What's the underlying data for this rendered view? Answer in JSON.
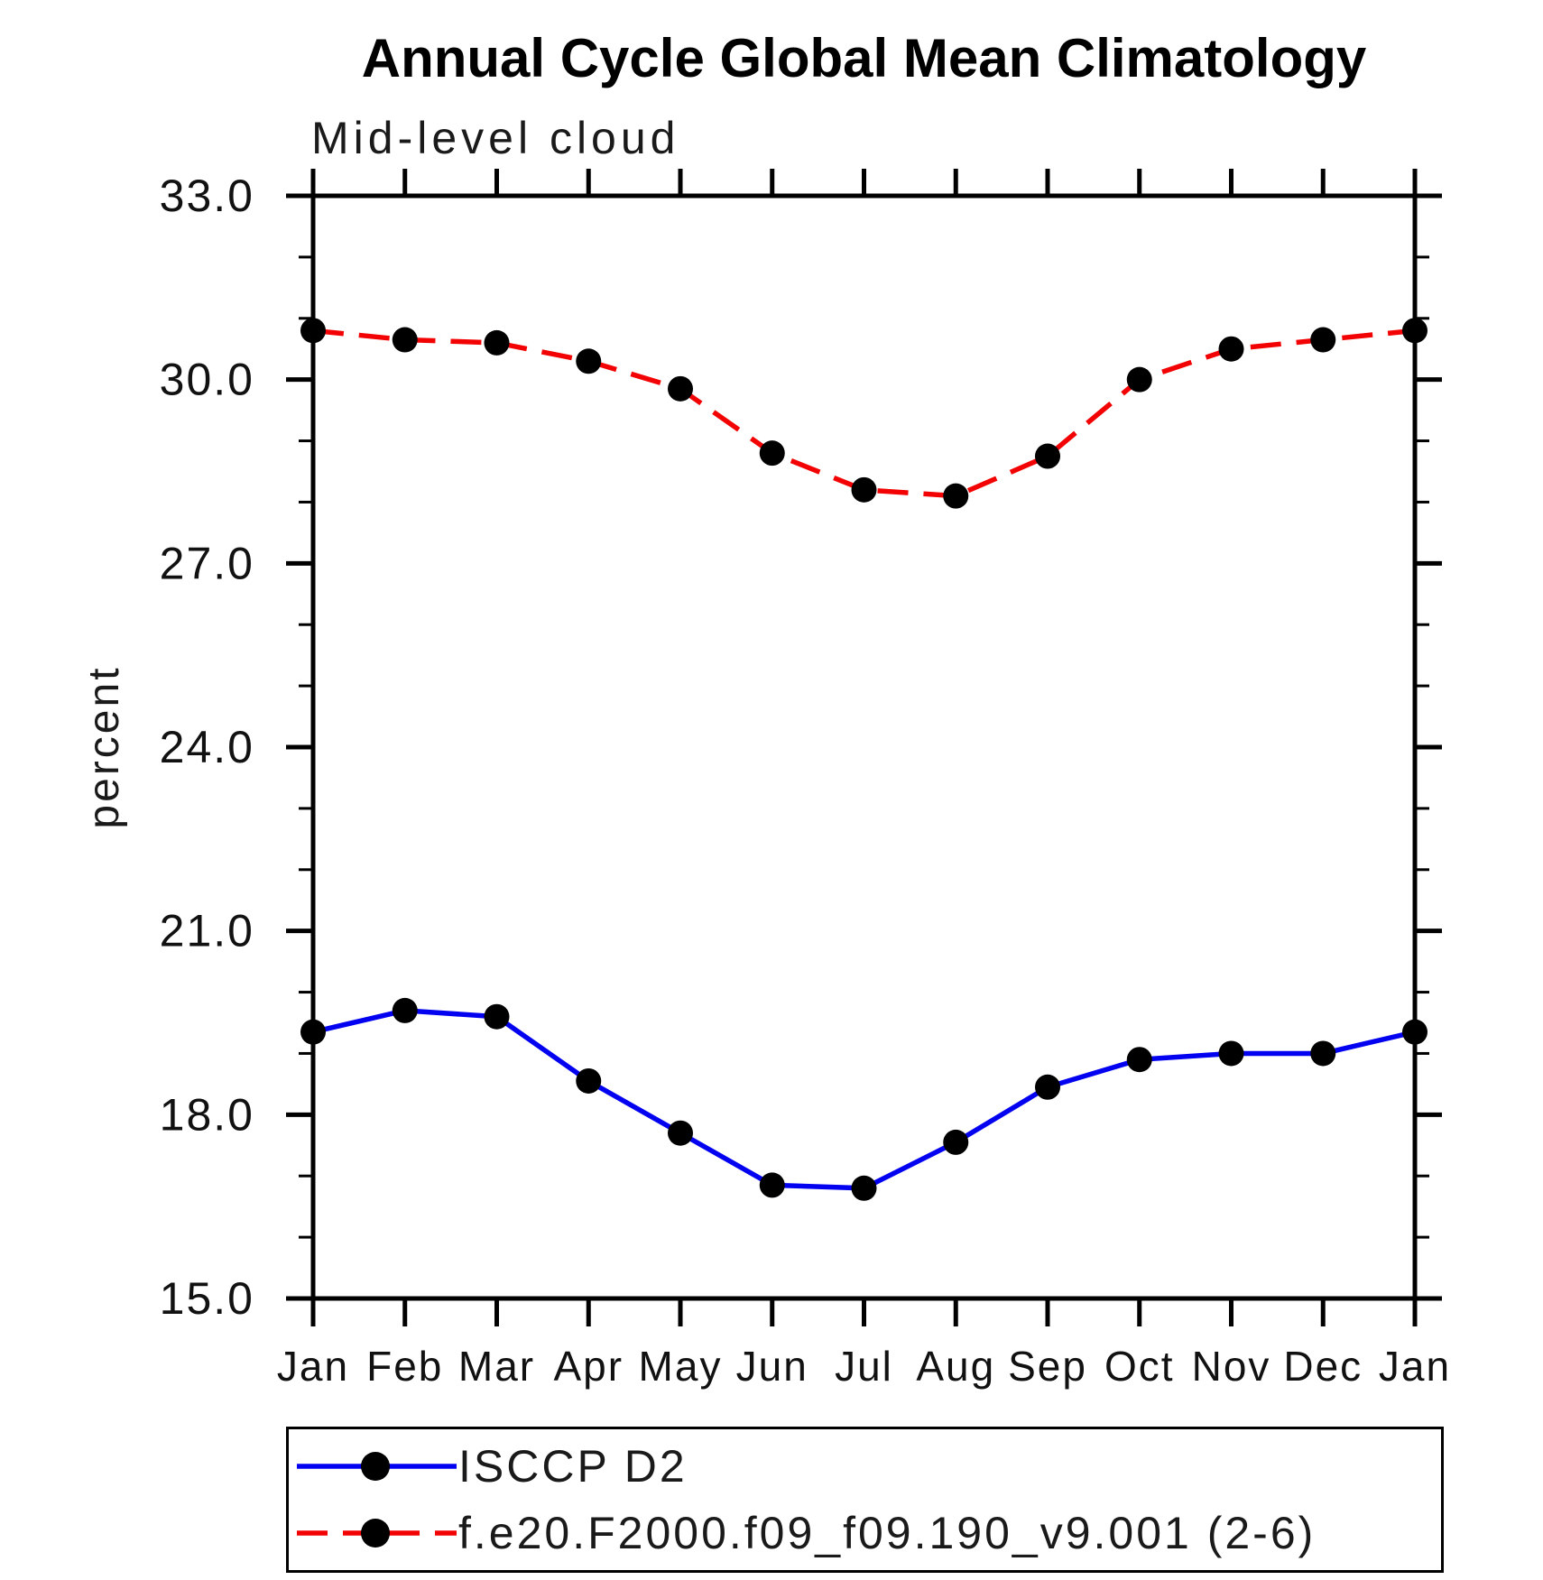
{
  "chart": {
    "title": "Annual Cycle Global Mean Climatology",
    "subtitle": "Mid-level cloud",
    "ylabel": "percent"
  },
  "chart_data": {
    "type": "line",
    "title": "Annual Cycle Global Mean Climatology",
    "subtitle": "Mid-level cloud",
    "xlabel": "",
    "ylabel": "percent",
    "ylim": [
      15.0,
      33.0
    ],
    "ytick_values": [
      15,
      18,
      21,
      24,
      27,
      30,
      33
    ],
    "ytick_labels": [
      "15.0",
      "18.0",
      "21.0",
      "24.0",
      "27.0",
      "30.0",
      "33.0"
    ],
    "yminor_step": 1.0,
    "grid": false,
    "legend_position": "bottom",
    "categories": [
      "Jan",
      "Feb",
      "Mar",
      "Apr",
      "May",
      "Jun",
      "Jul",
      "Aug",
      "Sep",
      "Oct",
      "Nov",
      "Dec",
      "Jan"
    ],
    "series": [
      {
        "name": "ISCCP D2",
        "color": "#0202f0",
        "line_style": "solid",
        "marker": "circle",
        "marker_color": "#000000",
        "values": [
          19.35,
          19.7,
          19.6,
          18.55,
          17.7,
          16.85,
          16.8,
          17.55,
          18.45,
          18.9,
          19.0,
          19.0,
          19.35
        ]
      },
      {
        "name": "f.e20.F2000.f09_f09.190_v9.001 (2-6)",
        "color": "#f20202",
        "line_style": "dashed",
        "marker": "circle",
        "marker_color": "#000000",
        "values": [
          30.8,
          30.65,
          30.6,
          30.3,
          29.85,
          28.8,
          28.2,
          28.1,
          28.75,
          30.0,
          30.5,
          30.65,
          30.8
        ]
      }
    ]
  },
  "legend": {
    "entries": [
      {
        "label": "ISCCP D2",
        "color": "#0202f0",
        "style": "solid"
      },
      {
        "label": "f.e20.F2000.f09_f09.190_v9.001 (2-6)",
        "color": "#f20202",
        "style": "dashed"
      }
    ]
  }
}
